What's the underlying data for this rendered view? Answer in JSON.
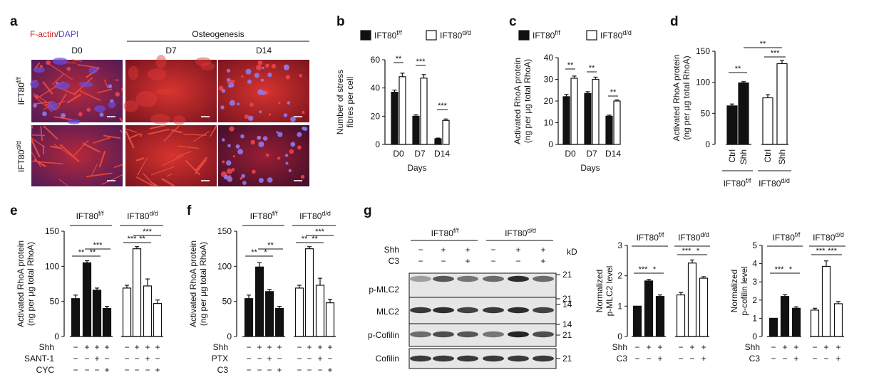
{
  "figure": {
    "panel_labels": [
      "a",
      "b",
      "c",
      "d",
      "e",
      "f",
      "g"
    ],
    "genotypes": {
      "fl": "IFT80",
      "fl_sup": "f/f",
      "dd": "IFT80",
      "dd_sup": "d/d"
    },
    "panel_a": {
      "stain_red": "F-actin",
      "stain_sep": "/",
      "stain_blue": "DAPI",
      "osteogenesis_label": "Osteogenesis",
      "columns": [
        "D0",
        "D7",
        "D14"
      ],
      "rows": [
        "IFT80 f/f",
        "IFT80 d/d"
      ],
      "colors": {
        "actin_red": "#c8252a",
        "dapi_blue": "#5a3fd6",
        "scale_bar": "#ffffff"
      }
    },
    "panel_g": {
      "rows_conditions": [
        {
          "label": "Shh",
          "marks": [
            "−",
            "+",
            "+",
            "−",
            "+",
            "+"
          ]
        },
        {
          "label": "C3",
          "marks": [
            "−",
            "−",
            "+",
            "−",
            "−",
            "+"
          ]
        }
      ],
      "kd_label": "kD",
      "blots": [
        {
          "label": "p-MLC2",
          "markers": [
            "21",
            "14"
          ]
        },
        {
          "label": "MLC2",
          "markers": [
            "21",
            "14"
          ]
        },
        {
          "label": "p-Cofilin",
          "markers": [
            "21"
          ]
        },
        {
          "label": "Cofilin",
          "markers": [
            "21"
          ]
        }
      ]
    }
  },
  "chart_data": [
    {
      "panel": "b",
      "type": "bar",
      "ylabel": "Number of stress fibres per cell",
      "xlabel": "Days",
      "ylim": [
        0,
        60
      ],
      "yticks": [
        "0",
        "20",
        "40",
        "60"
      ],
      "categories": [
        "D0",
        "D7",
        "D14"
      ],
      "legend": [
        "IFT80 f/f",
        "IFT80 d/d"
      ],
      "series": [
        {
          "name": "IFT80 f/f",
          "fill": "#111111",
          "values": [
            37,
            20,
            4
          ],
          "errors": [
            1.5,
            1,
            0.5
          ]
        },
        {
          "name": "IFT80 d/d",
          "fill": "#ffffff",
          "values": [
            48,
            47,
            17
          ],
          "errors": [
            2.5,
            2.5,
            1
          ]
        }
      ],
      "significance": [
        "**",
        "***",
        "***"
      ]
    },
    {
      "panel": "c",
      "type": "bar",
      "ylabel": "Activated RhoA protein (ng per µg total RhoA)",
      "xlabel": "Days",
      "ylim": [
        0,
        40
      ],
      "yticks": [
        "0",
        "10",
        "20",
        "30",
        "40"
      ],
      "categories": [
        "D0",
        "D7",
        "D14"
      ],
      "legend": [
        "IFT80 f/f",
        "IFT80 d/d"
      ],
      "series": [
        {
          "name": "IFT80 f/f",
          "fill": "#111111",
          "values": [
            22,
            23.5,
            13
          ],
          "errors": [
            1,
            0.8,
            0.5
          ]
        },
        {
          "name": "IFT80 d/d",
          "fill": "#ffffff",
          "values": [
            30.5,
            30,
            20
          ],
          "errors": [
            1,
            1,
            0.5
          ]
        }
      ],
      "significance": [
        "**",
        "**",
        "**"
      ]
    },
    {
      "panel": "d",
      "type": "bar",
      "ylabel": "Activated RhoA protein (ng per µg total RhoA)",
      "ylim": [
        0,
        150
      ],
      "yticks": [
        "0",
        "50",
        "100",
        "150"
      ],
      "categories": [
        "Ctrl",
        "Shh",
        "Ctrl",
        "Shh"
      ],
      "groups": [
        "IFT80 f/f",
        "IFT80 d/d"
      ],
      "values": [
        62,
        99,
        75,
        130
      ],
      "errors": [
        3,
        2,
        5,
        5
      ],
      "fills": [
        "#111111",
        "#111111",
        "#ffffff",
        "#ffffff"
      ],
      "significance": [
        "**",
        "***",
        "**"
      ]
    },
    {
      "panel": "e",
      "type": "bar",
      "ylabel": "Activated RhoA protein (ng per µg total RhoA)",
      "ylim": [
        0,
        150
      ],
      "yticks": [
        "0",
        "50",
        "100",
        "150"
      ],
      "groups": [
        "IFT80 f/f",
        "IFT80 d/d"
      ],
      "condition_rows": [
        {
          "label": "Shh",
          "marks": [
            "−",
            "+",
            "+",
            "+",
            "−",
            "+",
            "+",
            "+"
          ]
        },
        {
          "label": "SANT-1",
          "marks": [
            "−",
            "−",
            "+",
            "−",
            "−",
            "−",
            "+",
            "−"
          ]
        },
        {
          "label": "CYC",
          "marks": [
            "−",
            "−",
            "−",
            "+",
            "−",
            "−",
            "−",
            "+"
          ]
        }
      ],
      "values": [
        54,
        105,
        66,
        40,
        69,
        125,
        72,
        47
      ],
      "errors": [
        5,
        3,
        3,
        3,
        4,
        3,
        10,
        5
      ],
      "fills": [
        "#111111",
        "#111111",
        "#111111",
        "#111111",
        "#ffffff",
        "#ffffff",
        "#ffffff",
        "#ffffff"
      ],
      "significance": [
        "**",
        "**",
        "***",
        "***",
        "**",
        "***"
      ]
    },
    {
      "panel": "f",
      "type": "bar",
      "ylabel": "Activated RhoA protein (ng per µg total RhoA)",
      "ylim": [
        0,
        150
      ],
      "yticks": [
        "0",
        "50",
        "100",
        "150"
      ],
      "groups": [
        "IFT80 f/f",
        "IFT80 d/d"
      ],
      "condition_rows": [
        {
          "label": "Shh",
          "marks": [
            "−",
            "+",
            "+",
            "+",
            "−",
            "+",
            "+",
            "+"
          ]
        },
        {
          "label": "PTX",
          "marks": [
            "−",
            "−",
            "+",
            "−",
            "−",
            "−",
            "+",
            "−"
          ]
        },
        {
          "label": "C3",
          "marks": [
            "−",
            "−",
            "−",
            "+",
            "−",
            "−",
            "−",
            "+"
          ]
        }
      ],
      "values": [
        54,
        99,
        64,
        40,
        69,
        125,
        73,
        48
      ],
      "errors": [
        5,
        6,
        3,
        3,
        4,
        3,
        10,
        5
      ],
      "fills": [
        "#111111",
        "#111111",
        "#111111",
        "#111111",
        "#ffffff",
        "#ffffff",
        "#ffffff",
        "#ffffff"
      ],
      "significance": [
        "**",
        "*",
        "**",
        "**",
        "**",
        "***"
      ]
    },
    {
      "panel": "g1",
      "type": "bar",
      "ylabel": "Normalized p-MLC2 level",
      "ylim": [
        0,
        3
      ],
      "yticks": [
        "0",
        "1",
        "2",
        "3"
      ],
      "groups": [
        "IFT80 f/f",
        "IFT80 d/d"
      ],
      "condition_rows": [
        {
          "label": "Shh",
          "marks": [
            "−",
            "+",
            "+",
            "−",
            "+",
            "+"
          ]
        },
        {
          "label": "C3",
          "marks": [
            "−",
            "−",
            "+",
            "−",
            "−",
            "+"
          ]
        }
      ],
      "values": [
        1.0,
        1.83,
        1.32,
        1.37,
        2.42,
        1.92
      ],
      "errors": [
        0,
        0.05,
        0.05,
        0.08,
        0.1,
        0.05
      ],
      "fills": [
        "#111111",
        "#111111",
        "#111111",
        "#ffffff",
        "#ffffff",
        "#ffffff"
      ],
      "significance": [
        "***",
        "*",
        "***",
        "*"
      ]
    },
    {
      "panel": "g2",
      "type": "bar",
      "ylabel": "Normalized p-cofilin level",
      "ylim": [
        0,
        5
      ],
      "yticks": [
        "0",
        "1",
        "2",
        "3",
        "4",
        "5"
      ],
      "groups": [
        "IFT80 f/f",
        "IFT80 d/d"
      ],
      "condition_rows": [
        {
          "label": "Shh",
          "marks": [
            "−",
            "+",
            "+",
            "−",
            "+",
            "+"
          ]
        },
        {
          "label": "C3",
          "marks": [
            "−",
            "−",
            "+",
            "−",
            "−",
            "+"
          ]
        }
      ],
      "values": [
        1.0,
        2.2,
        1.55,
        1.45,
        3.85,
        1.8
      ],
      "errors": [
        0,
        0.1,
        0.08,
        0.1,
        0.3,
        0.12
      ],
      "fills": [
        "#111111",
        "#111111",
        "#111111",
        "#ffffff",
        "#ffffff",
        "#ffffff"
      ],
      "significance": [
        "***",
        "*",
        "***",
        "***"
      ]
    }
  ]
}
